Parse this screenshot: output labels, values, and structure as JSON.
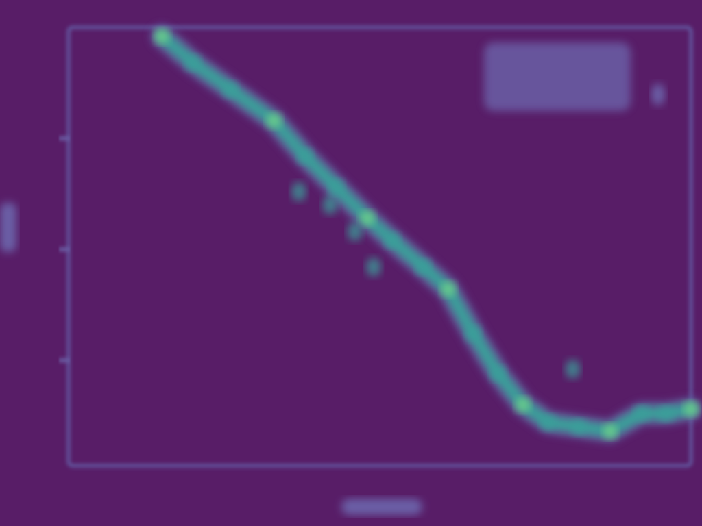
{
  "chart_data": {
    "type": "line",
    "title": "",
    "xlabel": "",
    "ylabel": "",
    "xlim": [
      0,
      100
    ],
    "ylim": [
      0,
      100
    ],
    "grid": false,
    "legend": {
      "position": "top-right",
      "entries": []
    },
    "x": [
      15,
      20,
      26,
      33,
      38,
      43,
      48,
      52,
      57,
      61,
      65,
      69,
      73,
      77,
      82,
      87,
      92,
      96,
      100
    ],
    "series": [
      {
        "values": [
          98,
          92,
          86,
          79,
          71,
          64,
          57,
          52,
          46,
          41,
          31,
          22,
          15,
          11,
          10,
          9,
          13,
          13,
          14
        ],
        "color": "#3b9f9a"
      }
    ],
    "secondary_markers": [
      {
        "x": 37,
        "y": 63
      },
      {
        "x": 42,
        "y": 60
      },
      {
        "x": 46,
        "y": 54
      },
      {
        "x": 49,
        "y": 46
      },
      {
        "x": 81,
        "y": 23
      }
    ]
  },
  "colors": {
    "background": "#581d67",
    "axis": "#6a5ea6",
    "trace": "#3b9f9a",
    "trace_highlight": "#6ed18a"
  }
}
